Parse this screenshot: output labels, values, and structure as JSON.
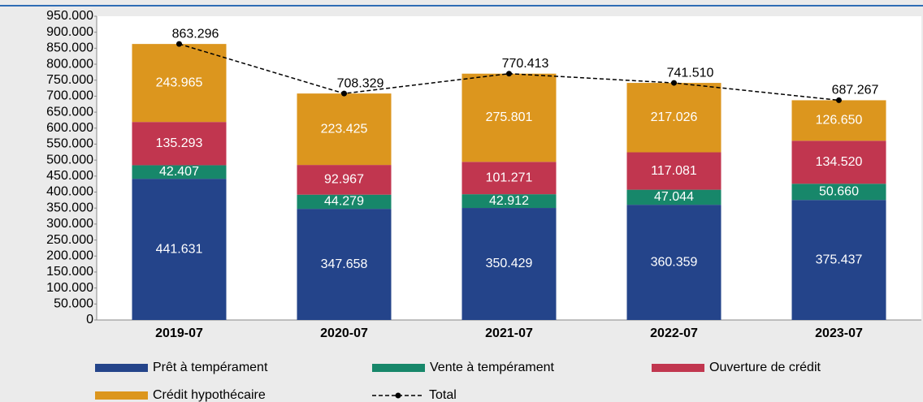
{
  "chart_data": {
    "type": "bar",
    "stacked": true,
    "categories": [
      "2019-07",
      "2020-07",
      "2021-07",
      "2022-07",
      "2023-07"
    ],
    "series": [
      {
        "name": "Prêt à tempérament",
        "color": "#24448a",
        "values": [
          441631,
          347658,
          350429,
          360359,
          375437
        ],
        "value_labels": [
          "441.631",
          "347.658",
          "350.429",
          "360.359",
          "375.437"
        ]
      },
      {
        "name": "Vente à tempérament",
        "color": "#17876a",
        "values": [
          42407,
          44279,
          42912,
          47044,
          50660
        ],
        "value_labels": [
          "42.407",
          "44.279",
          "42.912",
          "47.044",
          "50.660"
        ]
      },
      {
        "name": "Ouverture de crédit",
        "color": "#c1364f",
        "values": [
          135293,
          92967,
          101271,
          117081,
          134520
        ],
        "value_labels": [
          "135.293",
          "92.967",
          "101.271",
          "117.081",
          "134.520"
        ]
      },
      {
        "name": "Crédit hypothécaire",
        "color": "#dc961e",
        "values": [
          243965,
          223425,
          275801,
          217026,
          126650
        ],
        "value_labels": [
          "243.965",
          "223.425",
          "275.801",
          "217.026",
          "126.650"
        ]
      }
    ],
    "line": {
      "name": "Total",
      "color": "#000000",
      "values": [
        863296,
        708329,
        770413,
        741510,
        687267
      ],
      "value_labels": [
        "863.296",
        "708.329",
        "770.413",
        "741.510",
        "687.267"
      ]
    },
    "ylim": [
      0,
      950000
    ],
    "yticks": [
      0,
      {
        "value": 50000,
        "label": "50.000"
      },
      {
        "value": 100000,
        "label": "100.000"
      },
      {
        "value": 150000,
        "label": "150.000"
      },
      {
        "value": 200000,
        "label": "200.000"
      },
      {
        "value": 250000,
        "label": "250.000"
      },
      {
        "value": 300000,
        "label": "300.000"
      },
      {
        "value": 350000,
        "label": "350.000"
      },
      {
        "value": 400000,
        "label": "400.000"
      },
      {
        "value": 450000,
        "label": "450.000"
      },
      {
        "value": 500000,
        "label": "500.000"
      },
      {
        "value": 550000,
        "label": "550.000"
      },
      {
        "value": 600000,
        "label": "600.000"
      },
      {
        "value": 650000,
        "label": "650.000"
      },
      {
        "value": 700000,
        "label": "700.000"
      },
      {
        "value": 750000,
        "label": "750.000"
      },
      {
        "value": 800000,
        "label": "800.000"
      },
      {
        "value": 850000,
        "label": "850.000"
      },
      {
        "value": 900000,
        "label": "900.000"
      },
      {
        "value": 950000,
        "label": "950.000"
      }
    ],
    "grid": false,
    "legend": "bottom"
  }
}
